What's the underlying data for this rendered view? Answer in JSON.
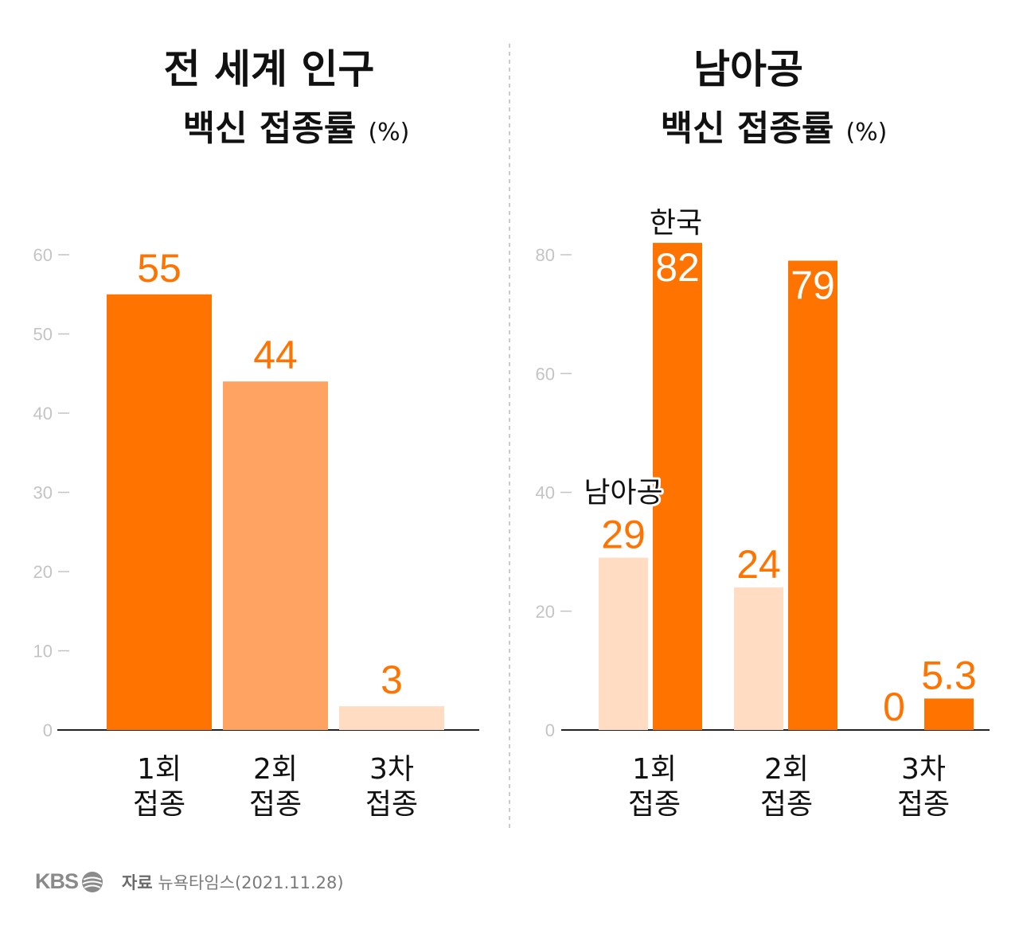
{
  "left_title": {
    "line1": "전 세계 인구",
    "line2": "백신 접종률",
    "unit": "(%)"
  },
  "right_title": {
    "line1": "남아공",
    "line2": "백신 접종률",
    "unit": "(%)"
  },
  "colors": {
    "orange": "#ff7300",
    "orange_mid": "#ffa362",
    "orange_light": "#ffdcc2",
    "value_text": "#ff7300",
    "axis": "#222222",
    "tick": "#c4c4c4"
  },
  "footer": {
    "logo_text": "KBS",
    "logo_icon": "kbs-globe-icon",
    "source_label": "자료",
    "source_text": "뉴욕타임스(2021.11.28)"
  },
  "chart_data": [
    {
      "type": "bar",
      "title": "전 세계 인구 백신 접종률 (%)",
      "categories": [
        [
          "1회",
          "접종"
        ],
        [
          "2회",
          "접종"
        ],
        [
          "3차",
          "접종"
        ]
      ],
      "values": [
        55,
        44,
        3
      ],
      "value_labels": [
        "55",
        "44",
        "3"
      ],
      "bar_colors": [
        "#ff7300",
        "#ffa362",
        "#ffdcc2"
      ],
      "ylim": [
        0,
        60
      ],
      "yticks": [
        0,
        10,
        20,
        30,
        40,
        50,
        60
      ],
      "grid": false
    },
    {
      "type": "bar",
      "title": "남아공 백신 접종률 (%)",
      "categories": [
        [
          "1회",
          "접종"
        ],
        [
          "2회",
          "접종"
        ],
        [
          "3차",
          "접종"
        ]
      ],
      "series": [
        {
          "name": "남아공",
          "values": [
            29,
            24,
            0
          ],
          "value_labels": [
            "29",
            "24",
            "0"
          ],
          "color": "#ffdcc2"
        },
        {
          "name": "한국",
          "values": [
            82,
            79,
            5.3
          ],
          "value_labels": [
            "82",
            "79",
            "5.3"
          ],
          "color": "#ff7300"
        }
      ],
      "ylim": [
        0,
        80
      ],
      "yticks": [
        0,
        20,
        40,
        60,
        80
      ],
      "grid": false
    }
  ]
}
